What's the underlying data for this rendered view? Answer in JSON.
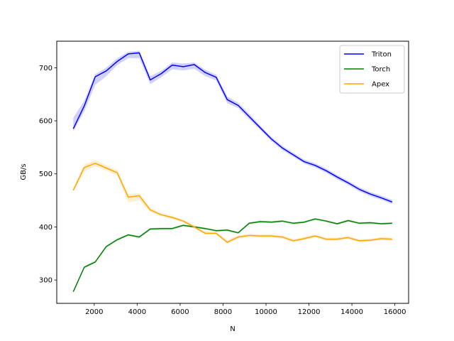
{
  "chart_data": {
    "type": "line",
    "xlabel": "N",
    "ylabel": "GB/s",
    "xlim": [
      256,
      16640
    ],
    "ylim": [
      256,
      750
    ],
    "xticks": [
      2000,
      4000,
      6000,
      8000,
      10000,
      12000,
      14000,
      16000
    ],
    "xtick_labels": [
      "2000",
      "4000",
      "6000",
      "8000",
      "10000",
      "12000",
      "14000",
      "16000"
    ],
    "yticks": [
      300,
      400,
      500,
      600,
      700
    ],
    "ytick_labels": [
      "300",
      "400",
      "500",
      "600",
      "700"
    ],
    "grid": false,
    "legend_position": "top-right",
    "x": [
      1024,
      1536,
      2048,
      2560,
      3072,
      3584,
      4096,
      4608,
      5120,
      5632,
      6144,
      6656,
      7168,
      7680,
      8192,
      8704,
      9216,
      9728,
      10240,
      10752,
      11264,
      11776,
      12288,
      12800,
      13312,
      13824,
      14336,
      14848,
      15360,
      15872
    ],
    "series": [
      {
        "name": "Triton",
        "color": "#0000ff",
        "values": [
          585,
          628,
          683,
          694,
          712,
          726,
          728,
          677,
          689,
          705,
          702,
          706,
          691,
          682,
          640,
          629,
          608,
          587,
          566,
          549,
          536,
          523,
          516,
          506,
          494,
          483,
          471,
          462,
          455,
          447
        ],
        "band_low": [
          580,
          618,
          668,
          684,
          705,
          718,
          718,
          669,
          682,
          697,
          695,
          698,
          684,
          676,
          633,
          624,
          603,
          583,
          562,
          545,
          532,
          519,
          512,
          502,
          490,
          479,
          467,
          458,
          451,
          443
        ],
        "band_high": [
          606,
          638,
          688,
          700,
          718,
          730,
          732,
          684,
          694,
          710,
          708,
          710,
          696,
          687,
          646,
          634,
          613,
          591,
          570,
          553,
          540,
          527,
          520,
          510,
          498,
          487,
          475,
          466,
          459,
          451
        ]
      },
      {
        "name": "Torch",
        "color": "#008000",
        "values": [
          278,
          324,
          334,
          363,
          376,
          385,
          381,
          396,
          397,
          397,
          403,
          400,
          397,
          393,
          394,
          389,
          407,
          410,
          409,
          411,
          407,
          409,
          415,
          411,
          406,
          412,
          407,
          408,
          406,
          407
        ],
        "band_low": [
          276,
          322,
          332,
          361,
          374,
          383,
          379,
          394,
          395,
          395,
          401,
          398,
          395,
          391,
          392,
          387,
          405,
          408,
          407,
          409,
          405,
          407,
          413,
          409,
          404,
          410,
          405,
          406,
          404,
          405
        ],
        "band_high": [
          280,
          326,
          336,
          365,
          378,
          387,
          383,
          398,
          399,
          399,
          405,
          402,
          399,
          395,
          396,
          391,
          409,
          412,
          411,
          413,
          409,
          411,
          417,
          413,
          408,
          414,
          409,
          410,
          408,
          409
        ]
      },
      {
        "name": "Apex",
        "color": "#ffa500",
        "values": [
          469,
          512,
          520,
          511,
          502,
          456,
          459,
          432,
          423,
          418,
          411,
          400,
          388,
          388,
          371,
          381,
          384,
          383,
          383,
          381,
          374,
          378,
          383,
          377,
          377,
          380,
          374,
          375,
          378,
          377
        ],
        "band_low": [
          466,
          505,
          514,
          506,
          497,
          446,
          450,
          428,
          420,
          415,
          408,
          397,
          385,
          385,
          368,
          378,
          381,
          380,
          380,
          378,
          371,
          375,
          380,
          374,
          374,
          377,
          371,
          372,
          375,
          374
        ],
        "band_high": [
          474,
          518,
          526,
          516,
          507,
          462,
          464,
          436,
          426,
          421,
          414,
          403,
          391,
          391,
          375,
          384,
          387,
          386,
          386,
          384,
          377,
          381,
          386,
          380,
          380,
          383,
          377,
          378,
          381,
          380
        ]
      }
    ]
  }
}
